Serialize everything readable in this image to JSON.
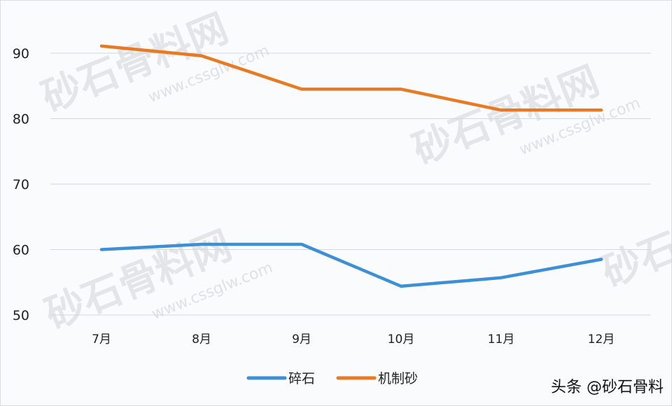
{
  "chart_data": {
    "type": "line",
    "title": "",
    "xlabel": "",
    "ylabel": "",
    "categories": [
      "7月",
      "8月",
      "9月",
      "10月",
      "11月",
      "12月"
    ],
    "series": [
      {
        "name": "碎石",
        "color": "#3d8fd6",
        "values": [
          60.0,
          60.8,
          60.8,
          54.4,
          55.7,
          58.5
        ]
      },
      {
        "name": "机制砂",
        "color": "#e87a22",
        "values": [
          91.1,
          89.6,
          84.5,
          84.5,
          81.3,
          81.3
        ]
      }
    ],
    "yticks": [
      "50",
      "60",
      "70",
      "80",
      "90"
    ],
    "ylim": [
      50,
      91
    ],
    "grid": true,
    "legend_position": "bottom-center"
  },
  "legend": {
    "items": [
      {
        "label": "碎石",
        "color": "#3d8fd6"
      },
      {
        "label": "机制砂",
        "color": "#e87a22"
      }
    ]
  },
  "credit": "头条 @砂石骨料",
  "watermark": {
    "text": "砂石骨料网",
    "url": "www.cssglw.com"
  }
}
